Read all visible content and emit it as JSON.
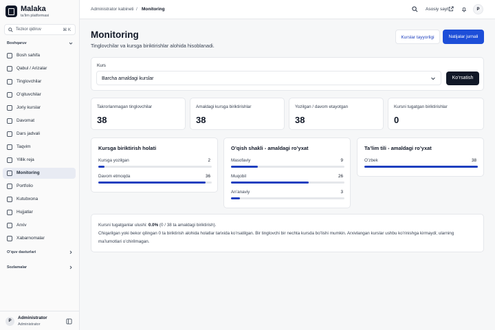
{
  "sidebar": {
    "brand": "Malaka",
    "tagline": "ta’lim platformasi",
    "search_placeholder": "Tezkor qidiruv",
    "search_shortcut": "⌘ K",
    "sections": [
      {
        "label": "Boshqaruv",
        "open": true,
        "items": [
          {
            "label": "Bosh sahifa"
          },
          {
            "label": "Qabul / Arizalar"
          },
          {
            "label": "Tinglovchilar"
          },
          {
            "label": "O’qituvchilar"
          },
          {
            "label": "Joriy kurslar"
          },
          {
            "label": "Davomat"
          },
          {
            "label": "Dars jadvali"
          },
          {
            "label": "Taqvim"
          },
          {
            "label": "Yillik reja"
          },
          {
            "label": "Monitoring",
            "active": true
          },
          {
            "label": "Portfolio"
          },
          {
            "label": "Kutubxona"
          },
          {
            "label": "Hujjatlar"
          },
          {
            "label": "Arxiv"
          },
          {
            "label": "Xabarnomalar"
          }
        ]
      },
      {
        "label": "O’quv dasturlari",
        "open": false,
        "items": []
      },
      {
        "label": "Sozlamalar",
        "open": false,
        "items": []
      }
    ],
    "user": {
      "avatar": "P",
      "name": "Administrator",
      "role": "Administrator"
    }
  },
  "topbar": {
    "breadcrumb": [
      "Administrator kabineti",
      "Monitoring"
    ],
    "separator": "/",
    "site_link": "Asosiy sayt",
    "avatar": "P"
  },
  "header": {
    "title": "Monitoring",
    "subtitle": "Tinglovchilar va kursga biriktirishlar alohida hisoblanadi.",
    "buttons": [
      "Kurslar tayyorligi",
      "Natijalar jurnali"
    ]
  },
  "course_filter": {
    "label": "Kurs",
    "selected": "Barcha amaldagi kurslar",
    "button": "Ko’rsatish"
  },
  "stats": [
    {
      "label": "Takrorlanmagan tinglovchilar",
      "value": 38
    },
    {
      "label": "Amaldagi kursga biriktirishlar",
      "value": 38
    },
    {
      "label": "Yozilgan / davom etayotgan",
      "value": 38
    },
    {
      "label": "Kursni tugatgan biriktirishlar",
      "value": 0
    }
  ],
  "panels": [
    {
      "title": "Kursga biriktirish holati",
      "rows": [
        {
          "label": "Kursga yozilgan",
          "value": 2
        },
        {
          "label": "Davom etmoqda",
          "value": 36
        }
      ]
    },
    {
      "title": "O’qish shakli - amaldagi ro’yxat",
      "rows": [
        {
          "label": "Masofaviy",
          "value": 9
        },
        {
          "label": "Muqobil",
          "value": 26
        },
        {
          "label": "An’anaviy",
          "value": 3
        }
      ]
    },
    {
      "title": "Ta’lim tili - amaldagi ro’yxat",
      "rows": [
        {
          "label": "O’zbek",
          "value": 38
        }
      ]
    }
  ],
  "note": {
    "prefix": "Kursni tugatganlar ulushi:",
    "rate": "0.0%",
    "rate_detail": "(0 / 38 ta amaldagi biriktirish).",
    "lines": [
      "Chiqarilgan yoki bekor qilingan 0 ta biriktirish alohida holatlar tarixida ko’rsatilgan. Bir tinglovchi bir nechta kursda bo’lishi mumkin. Arxivlangan kurslar ushbu ko’rinishga kirmaydi; ularning",
      "ma’lumotlari o’chirilmagan."
    ]
  }
}
